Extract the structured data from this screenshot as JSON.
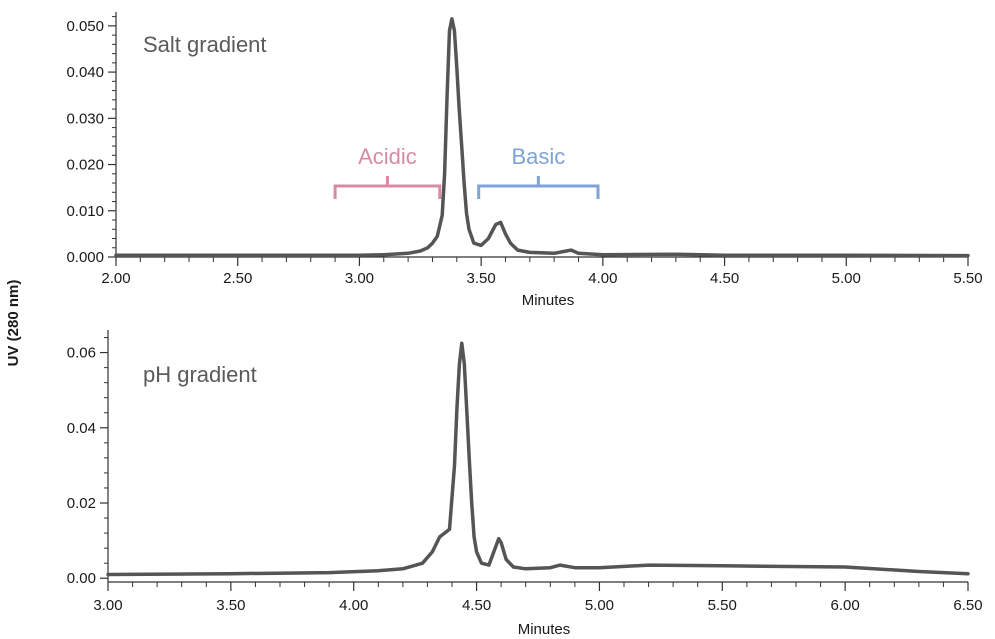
{
  "ylabel": "UV (280 nm)",
  "colors": {
    "trace": "#555555",
    "acidic": "#d98aa6",
    "basic": "#7fa3d6",
    "axis": "#333333"
  },
  "chart_data": [
    {
      "type": "line",
      "title": "Salt gradient",
      "xlabel": "Minutes",
      "xlim": [
        2.0,
        5.5
      ],
      "ylim": [
        0.0,
        0.053
      ],
      "x_ticks": [
        "2.00",
        "2.50",
        "3.00",
        "3.50",
        "4.00",
        "4.50",
        "5.00",
        "5.50"
      ],
      "y_ticks": [
        "0.000",
        "0.010",
        "0.020",
        "0.030",
        "0.040",
        "0.050"
      ],
      "annotations": [
        {
          "label": "Acidic",
          "x_start": 2.9,
          "x_end": 3.33,
          "color": "acidic"
        },
        {
          "label": "Basic",
          "x_start": 3.49,
          "x_end": 3.98,
          "color": "basic"
        }
      ],
      "series": [
        {
          "x": [
            2.0,
            2.5,
            3.0,
            3.1,
            3.2,
            3.25,
            3.28,
            3.3,
            3.32,
            3.34,
            3.35,
            3.36,
            3.37,
            3.38,
            3.39,
            3.4,
            3.41,
            3.42,
            3.43,
            3.44,
            3.45,
            3.47,
            3.5,
            3.53,
            3.56,
            3.58,
            3.6,
            3.62,
            3.65,
            3.7,
            3.8,
            3.85,
            3.87,
            3.9,
            4.0,
            4.3,
            4.5,
            5.0,
            5.5
          ],
          "y": [
            0.0004,
            0.0004,
            0.0004,
            0.0005,
            0.0008,
            0.0013,
            0.002,
            0.003,
            0.0045,
            0.009,
            0.018,
            0.035,
            0.049,
            0.0515,
            0.049,
            0.041,
            0.032,
            0.024,
            0.016,
            0.0095,
            0.006,
            0.003,
            0.0025,
            0.004,
            0.007,
            0.0075,
            0.005,
            0.003,
            0.0015,
            0.001,
            0.0008,
            0.0013,
            0.0015,
            0.0008,
            0.0005,
            0.0006,
            0.0004,
            0.0004,
            0.0003
          ]
        }
      ]
    },
    {
      "type": "line",
      "title": "pH gradient",
      "xlabel": "Minutes",
      "xlim": [
        3.0,
        6.5
      ],
      "ylim": [
        -0.001,
        0.066
      ],
      "x_ticks": [
        "3.00",
        "3.50",
        "4.00",
        "4.50",
        "5.00",
        "5.50",
        "6.00",
        "6.50"
      ],
      "y_ticks": [
        "0.00",
        "0.02",
        "0.04",
        "0.06"
      ],
      "series": [
        {
          "x": [
            3.0,
            3.5,
            3.9,
            4.1,
            4.2,
            4.28,
            4.32,
            4.35,
            4.37,
            4.39,
            4.41,
            4.42,
            4.43,
            4.44,
            4.45,
            4.46,
            4.47,
            4.48,
            4.49,
            4.5,
            4.52,
            4.55,
            4.57,
            4.59,
            4.6,
            4.62,
            4.65,
            4.7,
            4.8,
            4.84,
            4.9,
            5.0,
            5.2,
            5.5,
            6.0,
            6.3,
            6.5
          ],
          "y": [
            0.001,
            0.0012,
            0.0015,
            0.002,
            0.0025,
            0.004,
            0.007,
            0.011,
            0.012,
            0.013,
            0.03,
            0.045,
            0.057,
            0.0625,
            0.057,
            0.045,
            0.032,
            0.02,
            0.011,
            0.007,
            0.004,
            0.0035,
            0.007,
            0.0105,
            0.0095,
            0.005,
            0.003,
            0.0025,
            0.0028,
            0.0035,
            0.0028,
            0.0028,
            0.0035,
            0.0033,
            0.003,
            0.0018,
            0.0012
          ]
        }
      ]
    }
  ]
}
